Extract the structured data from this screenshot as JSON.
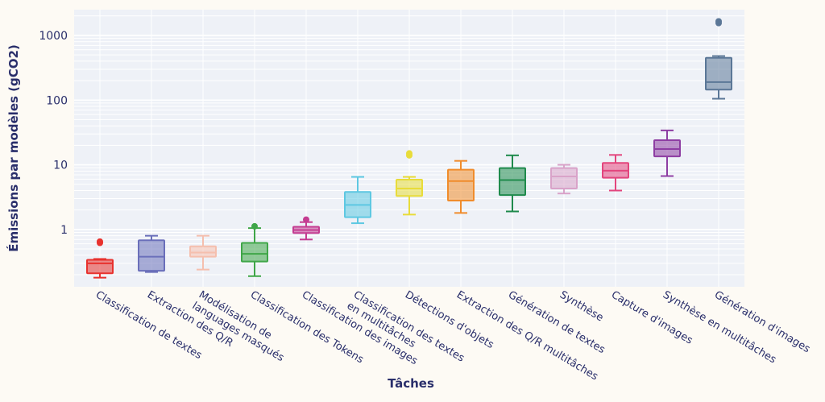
{
  "chart_data": {
    "type": "box",
    "xlabel": "Tâches",
    "ylabel": "Émissions par modèles (gCO2)",
    "yscale": "log",
    "ylim": [
      0.13,
      2500
    ],
    "yticks": [
      {
        "value": 1,
        "label": "1"
      },
      {
        "value": 10,
        "label": "10"
      },
      {
        "value": 100,
        "label": "100"
      },
      {
        "value": 1000,
        "label": "1000"
      }
    ],
    "grid": true,
    "categories": [
      {
        "label": "Classification de textes",
        "color": "#e8322e",
        "min": 0.18,
        "q1": 0.21,
        "median": 0.3,
        "q3": 0.34,
        "max": 0.35,
        "outliers": [
          0.62,
          0.65
        ]
      },
      {
        "label": "Extraction des Q/R",
        "color": "#6a6fba",
        "min": 0.22,
        "q1": 0.23,
        "median": 0.38,
        "q3": 0.68,
        "max": 0.8,
        "outliers": []
      },
      {
        "label": "Modélisation de\nlanguages masqués",
        "color": "#f5bfae",
        "min": 0.24,
        "q1": 0.38,
        "median": 0.44,
        "q3": 0.55,
        "max": 0.8,
        "outliers": []
      },
      {
        "label": "Classification des Tokens",
        "color": "#3fa648",
        "min": 0.19,
        "q1": 0.32,
        "median": 0.42,
        "q3": 0.62,
        "max": 1.05,
        "outliers": [
          1.12
        ]
      },
      {
        "label": "Classification des images",
        "color": "#c43c91",
        "min": 0.7,
        "q1": 0.88,
        "median": 0.98,
        "q3": 1.1,
        "max": 1.3,
        "outliers": [
          1.42
        ]
      },
      {
        "label": "Classification des textes\nen multitâches",
        "color": "#5ec8e2",
        "min": 1.25,
        "q1": 1.55,
        "median": 2.4,
        "q3": 3.8,
        "max": 6.5,
        "outliers": []
      },
      {
        "label": "Détections d'objets",
        "color": "#e8dc3a",
        "min": 1.7,
        "q1": 3.3,
        "median": 4.3,
        "q3": 5.9,
        "max": 6.5,
        "outliers": [
          14.0,
          15.0
        ]
      },
      {
        "label": "Extraction des Q/R multitâches",
        "color": "#f08c2c",
        "min": 1.8,
        "q1": 2.8,
        "median": 5.6,
        "q3": 8.4,
        "max": 11.5,
        "outliers": []
      },
      {
        "label": "Génération de textes",
        "color": "#1f8a4c",
        "min": 1.9,
        "q1": 3.4,
        "median": 5.8,
        "q3": 8.9,
        "max": 14.0,
        "outliers": []
      },
      {
        "label": "Synthèse",
        "color": "#d9a3c9",
        "min": 3.6,
        "q1": 4.3,
        "median": 6.6,
        "q3": 8.9,
        "max": 10.0,
        "outliers": []
      },
      {
        "label": "Capture d'images",
        "color": "#e3457d",
        "min": 4.0,
        "q1": 6.3,
        "median": 8.1,
        "q3": 10.7,
        "max": 14.2,
        "outliers": []
      },
      {
        "label": "Synthèse en multitâches",
        "color": "#8e3ea3",
        "min": 6.7,
        "q1": 13.5,
        "median": 17.5,
        "q3": 24.0,
        "max": 34.0,
        "outliers": []
      },
      {
        "label": "Génération d'images",
        "color": "#5b7797",
        "min": 105,
        "q1": 145,
        "median": 190,
        "q3": 450,
        "max": 480,
        "outliers": [
          1550,
          1650
        ]
      }
    ]
  }
}
